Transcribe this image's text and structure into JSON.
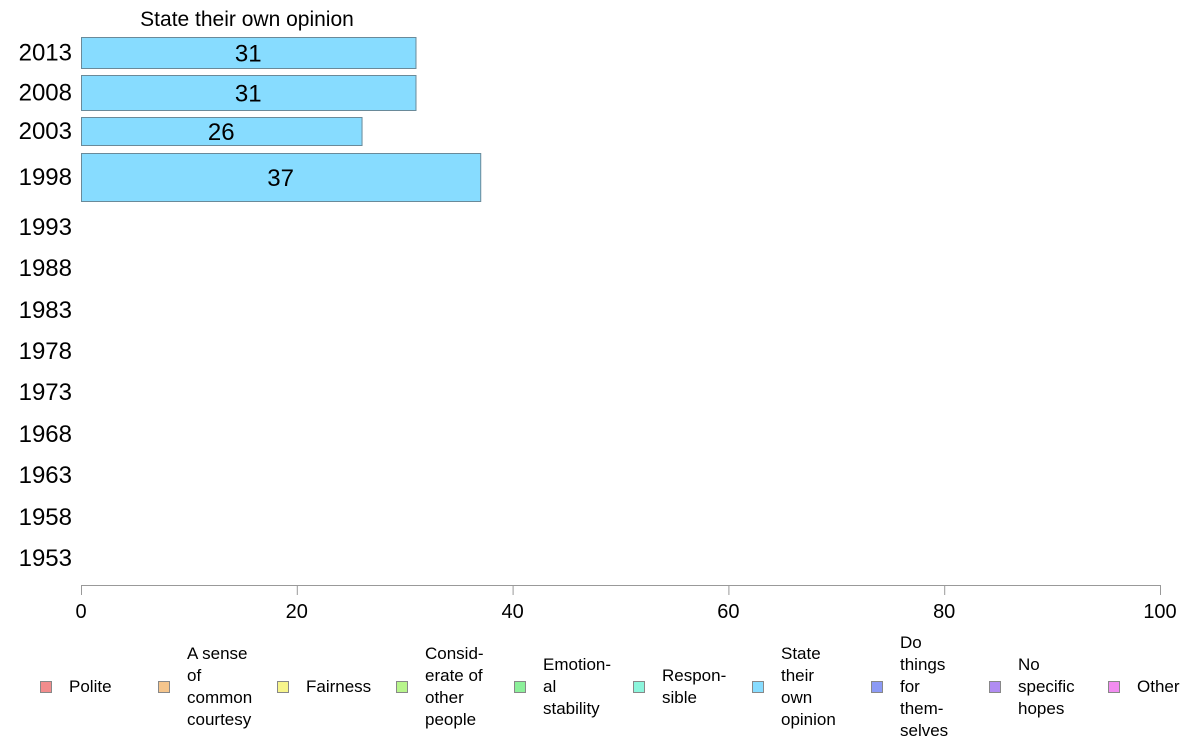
{
  "chart_data": {
    "type": "bar",
    "orientation": "horizontal",
    "title": "State their own opinion",
    "categories": [
      "2013",
      "2008",
      "2003",
      "1998",
      "1993",
      "1988",
      "1983",
      "1978",
      "1973",
      "1968",
      "1963",
      "1958",
      "1953"
    ],
    "values": [
      31,
      31,
      26,
      37,
      null,
      null,
      null,
      null,
      null,
      null,
      null,
      null,
      null
    ],
    "bar_color": "#87dcff",
    "xlim": [
      0,
      100
    ],
    "xticks": [
      0,
      20,
      40,
      60,
      80,
      100
    ],
    "grid": false,
    "legend_position": "bottom"
  },
  "legend": [
    {
      "label": "Polite",
      "color": "#f28c8c"
    },
    {
      "label": "A sense\nof\ncommon\ncourtesy",
      "color": "#f5c58c"
    },
    {
      "label": "Fairness",
      "color": "#f7f58c"
    },
    {
      "label": "Consid-\nerate of\nother\npeople",
      "color": "#b8f58c"
    },
    {
      "label": "Emotion-\nal\nstability",
      "color": "#8cf09a"
    },
    {
      "label": "Respon-\nsible",
      "color": "#8cf5dc"
    },
    {
      "label": "State\ntheir\nown\nopinion",
      "color": "#87dcff"
    },
    {
      "label": "Do\nthings\nfor\nthem-\nselves",
      "color": "#8c9af5"
    },
    {
      "label": "No\nspecific\nhopes",
      "color": "#b08cf2"
    },
    {
      "label": "Other",
      "color": "#f28cf0"
    }
  ]
}
